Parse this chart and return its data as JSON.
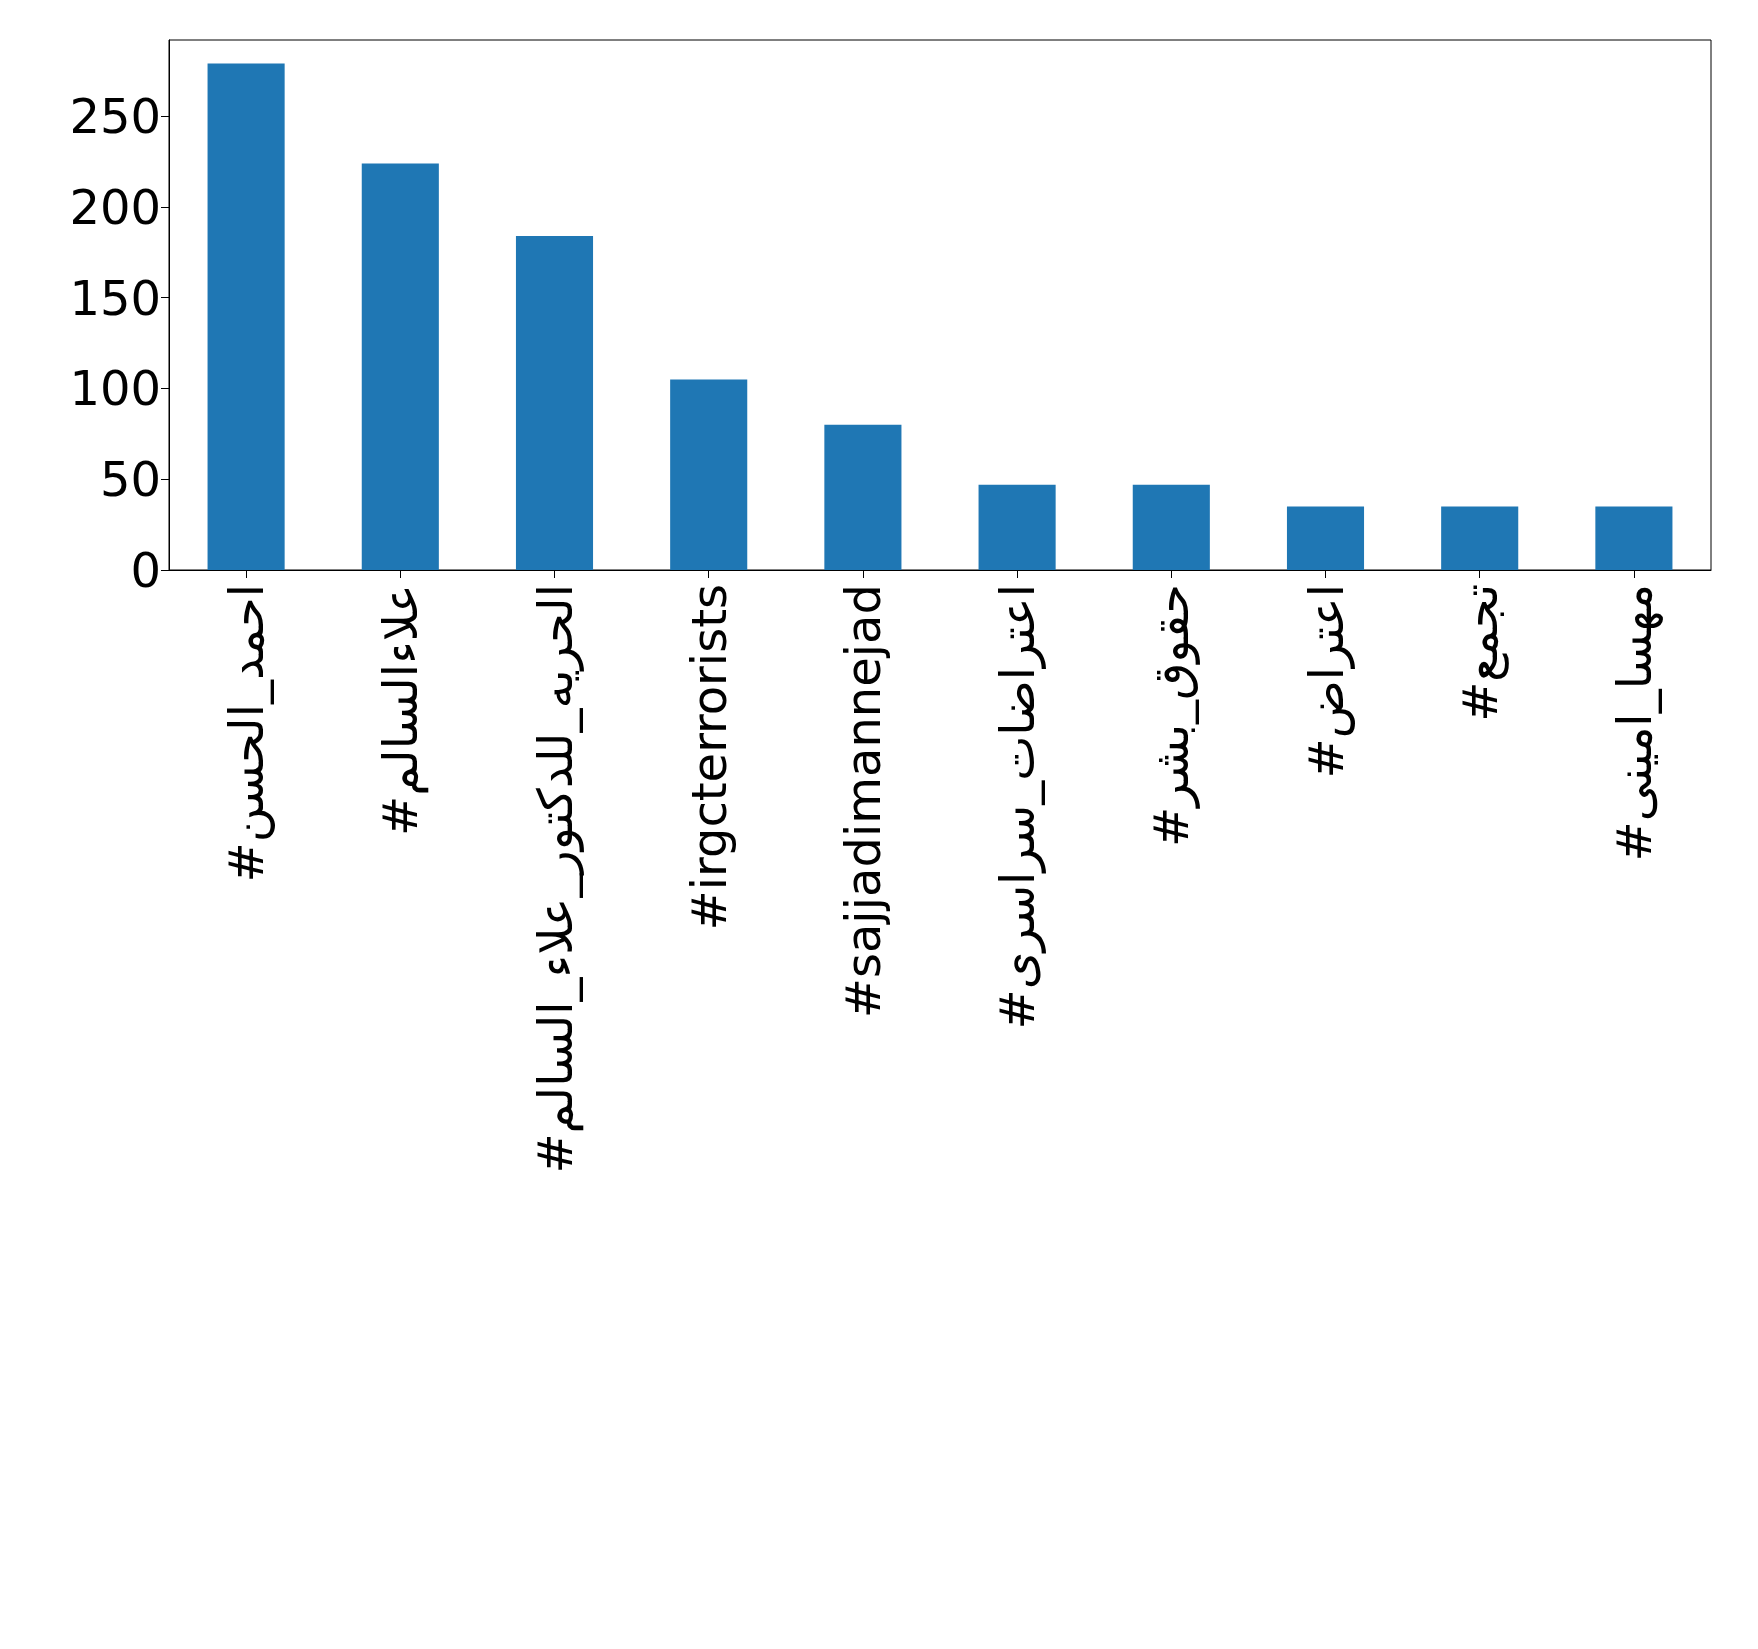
{
  "chart_data": {
    "type": "bar",
    "categories": [
      "#احمد_الحسن",
      "#علاءالسالم",
      "#الحريه_للدكتور_علاء_السالم",
      "#irgcterrorists",
      "#sajjadimannejad",
      "#اعتراضات_سراسری",
      "#حقوق_بشر",
      "#اعتراض",
      "#تجمع",
      "#مهسا_امینی"
    ],
    "values": [
      279,
      224,
      184,
      105,
      80,
      47,
      47,
      35,
      35,
      35
    ],
    "color": "#1f77b4",
    "ylim": [
      0,
      292
    ],
    "yticks": [
      0,
      50,
      100,
      150,
      200,
      250
    ],
    "grid": false
  }
}
